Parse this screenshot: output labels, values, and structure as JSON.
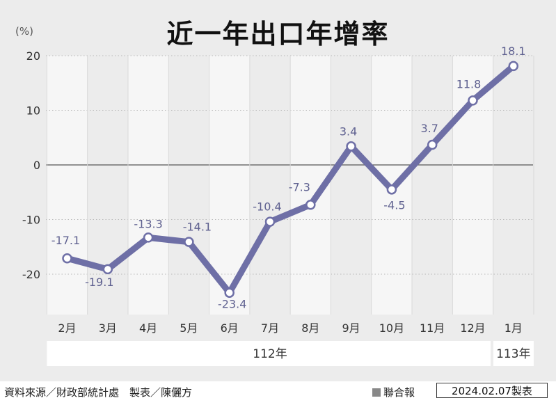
{
  "footer": {
    "source": "資料來源／財政部統計處　製表／陳儷方",
    "brand": "聯合報",
    "date_stamp": "2024.02.07製表"
  },
  "colors": {
    "line": "#6e6fa6",
    "point_fill": "#ffffff",
    "label": "#5f6190",
    "background": "#ececec",
    "column_stripe": "#f6f6f6"
  },
  "chart_data": {
    "type": "line",
    "title": "近一年出口年增率",
    "ylabel": "(%)",
    "ylim": [
      -27,
      22
    ],
    "yticks": [
      20,
      10,
      0,
      -10,
      -20
    ],
    "grid": true,
    "categories": [
      "2月",
      "3月",
      "4月",
      "5月",
      "6月",
      "7月",
      "8月",
      "9月",
      "10月",
      "11月",
      "12月",
      "1月"
    ],
    "values": [
      -17.1,
      -19.1,
      -13.3,
      -14.1,
      -23.4,
      -10.4,
      -7.3,
      3.4,
      -4.5,
      3.7,
      11.8,
      18.1
    ],
    "value_labels": [
      "-17.1",
      "-19.1",
      "-13.3",
      "-14.1",
      "-23.4",
      "-10.4",
      "-7.3",
      "3.4",
      "-4.5",
      "3.7",
      "11.8",
      "18.1"
    ],
    "year_groups": [
      {
        "label": "112年",
        "start": 0,
        "end": 10
      },
      {
        "label": "113年",
        "start": 11,
        "end": 11
      }
    ]
  }
}
